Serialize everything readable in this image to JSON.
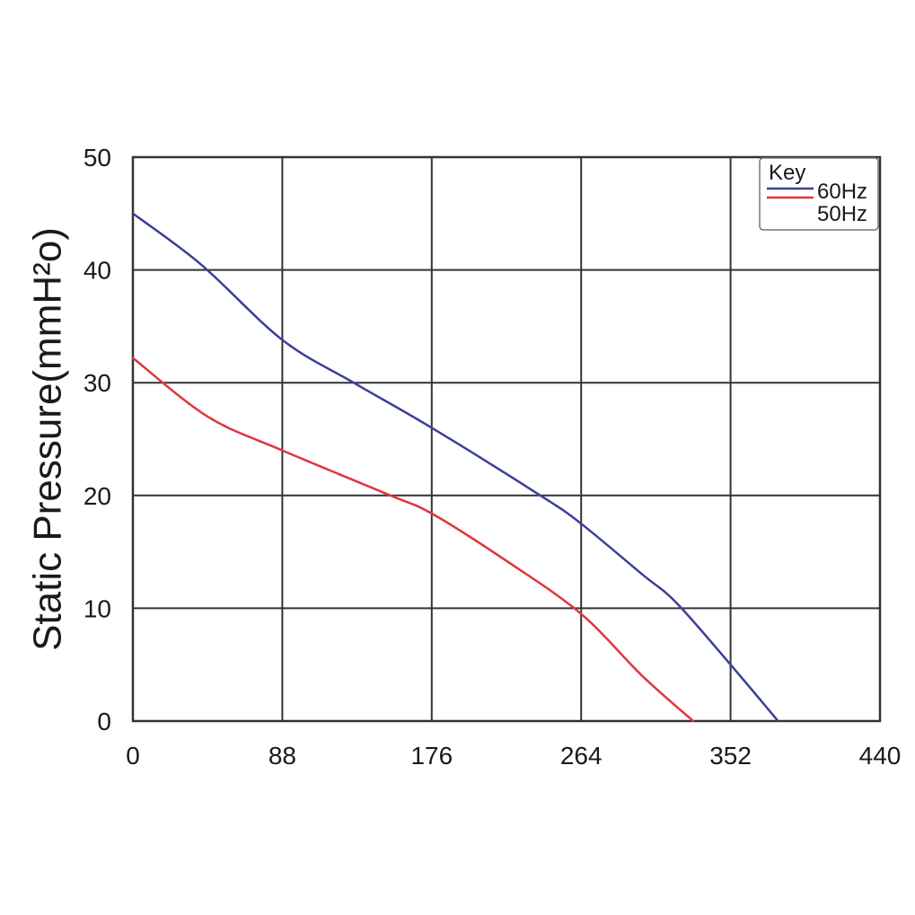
{
  "chart_data": {
    "type": "line",
    "title": "",
    "xlabel": "",
    "ylabel": "Static Pressure(mmH²o)",
    "xlim": [
      0,
      440
    ],
    "ylim": [
      0,
      50
    ],
    "x_ticks": [
      "0",
      "88",
      "176",
      "264",
      "352",
      "440"
    ],
    "y_ticks": [
      "0",
      "10",
      "20",
      "30",
      "40",
      "50"
    ],
    "grid": true,
    "legend": {
      "title": "Key",
      "position": "top-right"
    },
    "series": [
      {
        "name": "60Hz",
        "color": "#3a3f9a",
        "x": [
          0,
          40,
          88,
          130,
          176,
          240,
          264,
          300,
          320,
          352,
          380
        ],
        "y": [
          45,
          40.5,
          33.8,
          30,
          26,
          20,
          17.5,
          13,
          10.5,
          5,
          0
        ]
      },
      {
        "name": "50Hz",
        "color": "#e0353f",
        "x": [
          0,
          44,
          88,
          150,
          176,
          220,
          264,
          300,
          330
        ],
        "y": [
          32.2,
          27,
          24,
          20.1,
          18.4,
          14.2,
          9.5,
          4,
          0
        ]
      }
    ]
  }
}
